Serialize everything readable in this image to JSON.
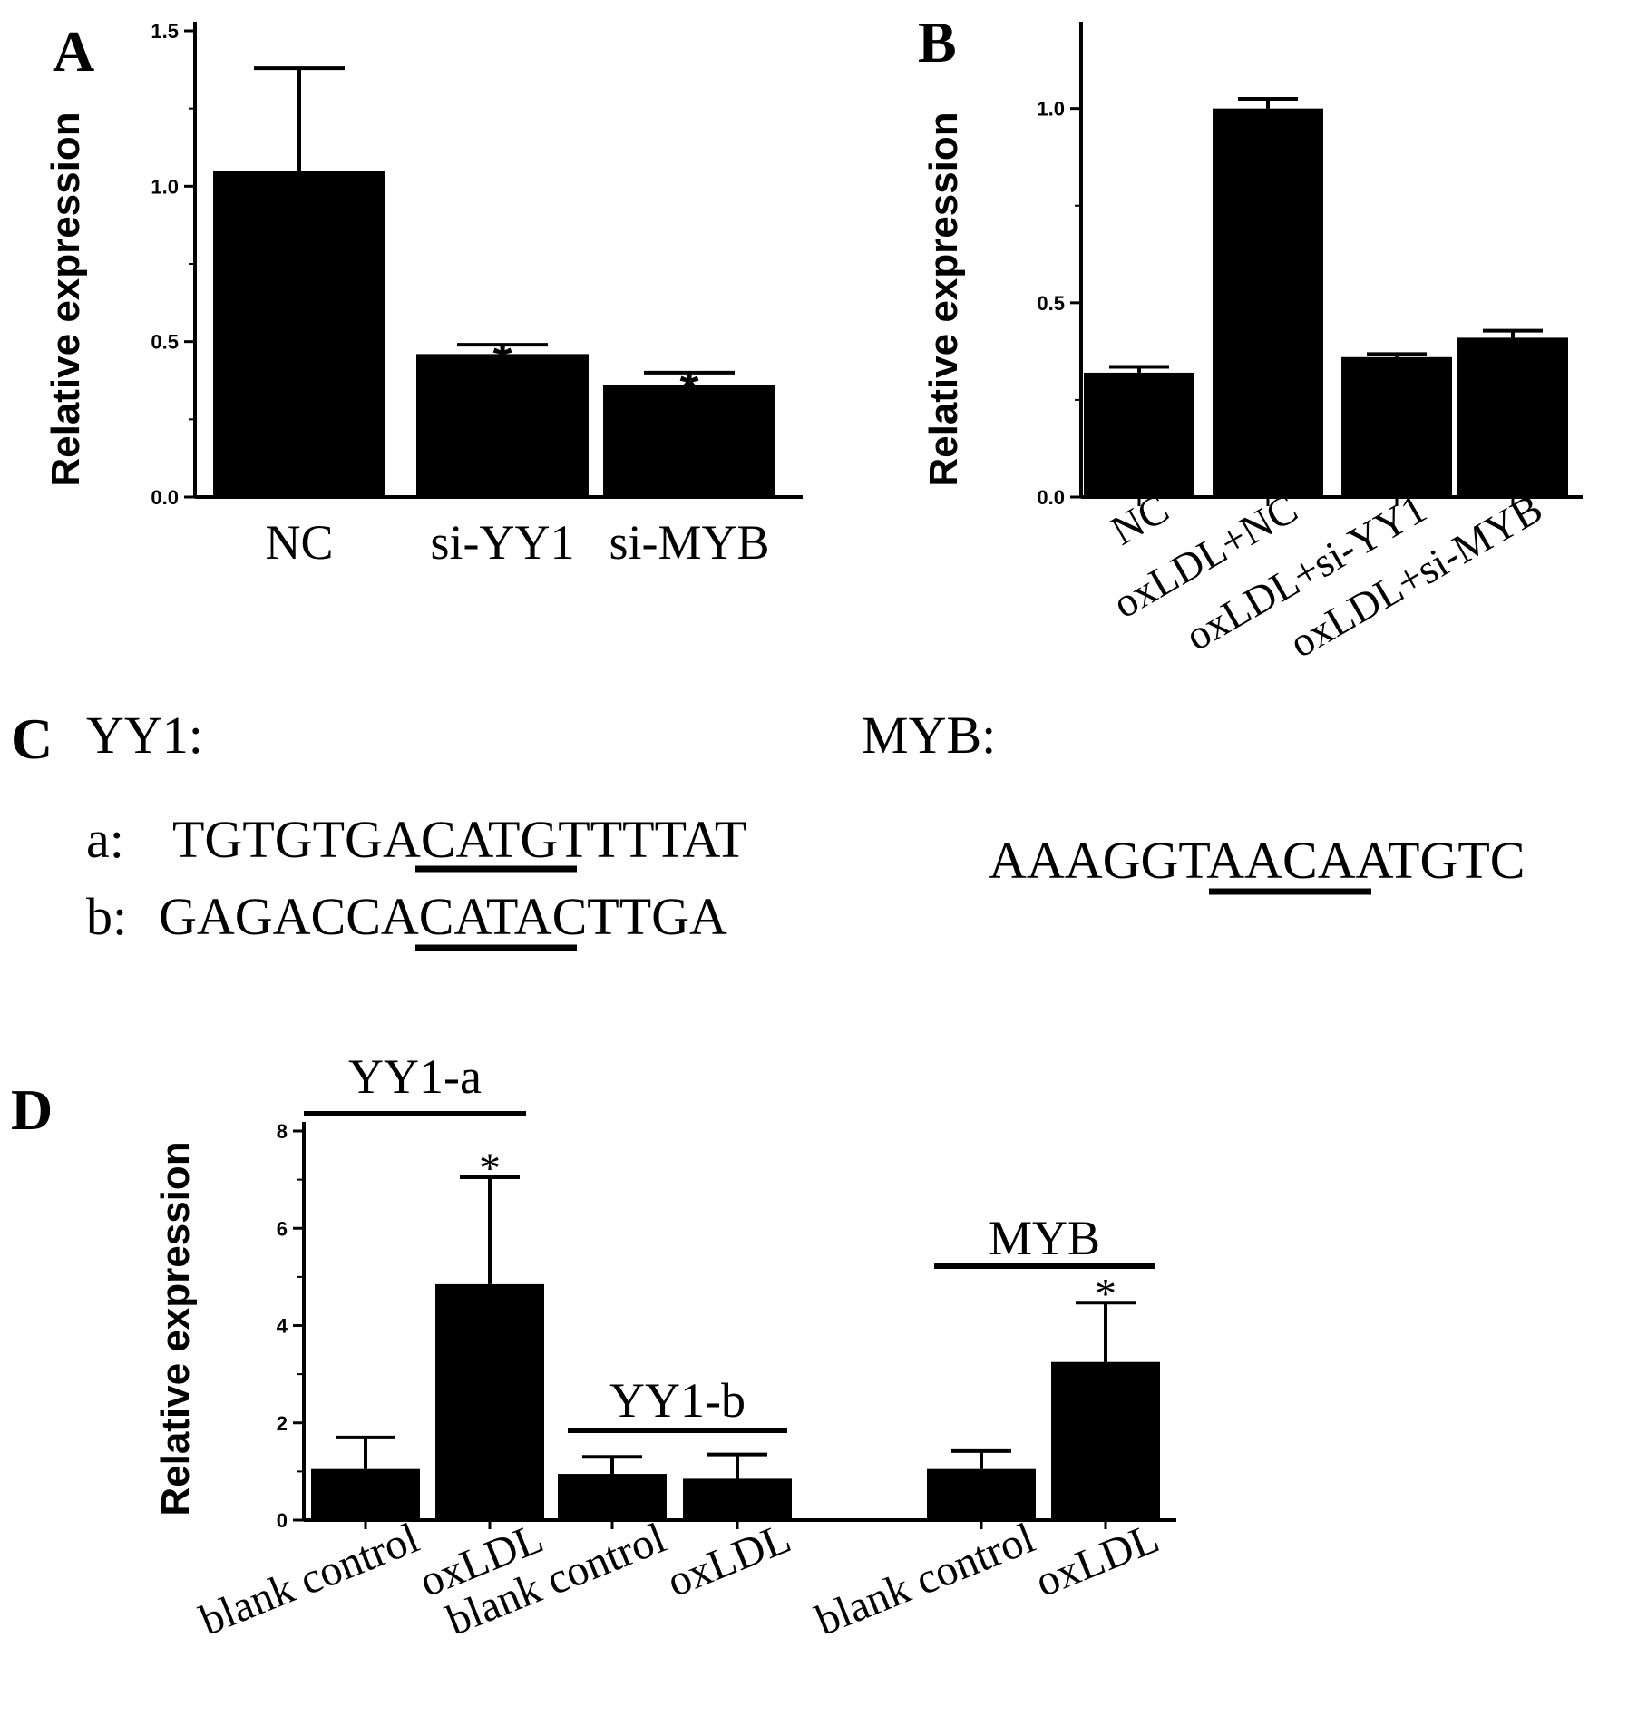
{
  "panels": {
    "a": "A",
    "b": "B",
    "c": "C",
    "d": "D"
  },
  "chart_data": [
    {
      "panel": "A",
      "type": "bar",
      "ylabel": "Relative expression",
      "ylim": [
        0,
        1.5
      ],
      "yticks": [
        "0.0",
        "0.5",
        "1.0",
        "1.5"
      ],
      "categories": [
        "NC",
        "si-YY1",
        "si-MYB"
      ],
      "values": [
        1.05,
        0.46,
        0.36
      ],
      "errors": [
        0.33,
        0.03,
        0.04
      ],
      "significance": [
        "",
        "*",
        "*"
      ]
    },
    {
      "panel": "B",
      "type": "bar",
      "ylabel": "Relative expression",
      "ylim": [
        0,
        1.2
      ],
      "yticks": [
        "0.0",
        "0.5",
        "1.0"
      ],
      "categories": [
        "NC",
        "oxLDL+NC",
        "oxLDL+si-YY1",
        "oxLDL+si-MYB"
      ],
      "values": [
        0.32,
        1.0,
        0.36,
        0.41
      ],
      "errors": [
        0.015,
        0.025,
        0.008,
        0.018
      ],
      "significance": [
        "",
        "",
        "",
        ""
      ]
    },
    {
      "panel": "D",
      "type": "bar",
      "ylabel": "Relative expression",
      "ylim": [
        0,
        8
      ],
      "yticks": [
        "0",
        "2",
        "4",
        "6",
        "8"
      ],
      "categories": [
        "blank control",
        "oxLDL",
        "blank control",
        "oxLDL",
        "blank control",
        "oxLDL"
      ],
      "groups": [
        "YY1-a",
        "YY1-b",
        "MYB"
      ],
      "values": [
        1.05,
        4.85,
        0.95,
        0.85,
        1.05,
        3.25
      ],
      "errors": [
        0.65,
        2.2,
        0.35,
        0.5,
        0.37,
        1.22
      ],
      "significance": [
        "",
        "*",
        "",
        "",
        "",
        "*"
      ]
    }
  ],
  "sequences": {
    "yy1_title": "YY1:",
    "myb_title": "MYB:",
    "a_label": "a:",
    "a_pre": "TGTGTG",
    "a_motif": "ACAT",
    "a_post": "GTTTTAT",
    "b_label": "b:",
    "b_pre": "GAGACC",
    "b_motif": "ACAT",
    "b_post": "ACTTGA",
    "myb_pre": "AAAGGT",
    "myb_motif": "AAC",
    "myb_post": "AATGTC"
  }
}
